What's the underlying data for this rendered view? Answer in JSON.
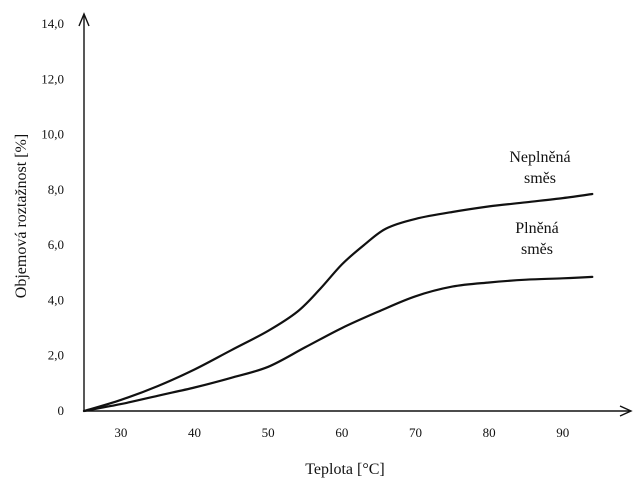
{
  "chart_data": {
    "type": "line",
    "xlabel": "Teplota [°C]",
    "ylabel": "Objemová roztažnost [%]",
    "xlim": [
      25,
      96
    ],
    "ylim": [
      0,
      14
    ],
    "xticks": [
      30,
      40,
      50,
      60,
      70,
      80,
      90
    ],
    "yticks": [
      {
        "value": 0,
        "label": "0"
      },
      {
        "value": 2,
        "label": "2,0"
      },
      {
        "value": 4,
        "label": "4,0"
      },
      {
        "value": 6,
        "label": "6,0"
      },
      {
        "value": 8,
        "label": "8,0"
      },
      {
        "value": 10,
        "label": "10,0"
      },
      {
        "value": 12,
        "label": "12,0"
      },
      {
        "value": 14,
        "label": "14,0"
      }
    ],
    "grid": false,
    "series": [
      {
        "name_lines": [
          "Neplněná",
          "směs"
        ],
        "x": [
          25,
          30,
          35,
          40,
          45,
          50,
          54,
          57,
          60,
          63,
          66,
          70,
          75,
          80,
          85,
          90,
          94
        ],
        "y": [
          0,
          0.4,
          0.9,
          1.5,
          2.2,
          2.9,
          3.6,
          4.4,
          5.3,
          6.0,
          6.6,
          6.95,
          7.2,
          7.4,
          7.55,
          7.7,
          7.85
        ]
      },
      {
        "name_lines": [
          "Plněná",
          "směs"
        ],
        "x": [
          25,
          30,
          35,
          40,
          45,
          50,
          55,
          60,
          65,
          70,
          75,
          80,
          85,
          90,
          94
        ],
        "y": [
          0,
          0.25,
          0.55,
          0.85,
          1.2,
          1.6,
          2.3,
          3.0,
          3.6,
          4.15,
          4.5,
          4.65,
          4.75,
          4.8,
          4.85
        ]
      }
    ]
  }
}
